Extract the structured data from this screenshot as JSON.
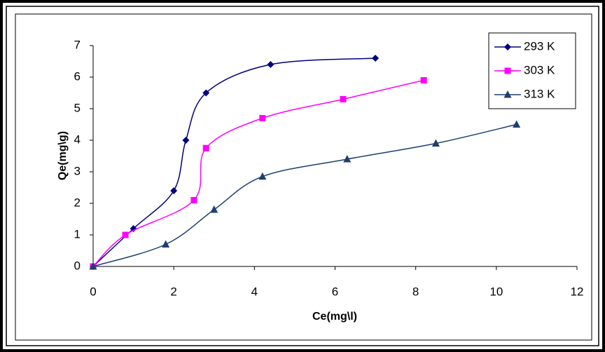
{
  "chart_data": {
    "type": "line",
    "smooth": true,
    "x_label": "Ce(mg\\l)",
    "y_label": "Qe(mg\\g)",
    "xlim": [
      0,
      12
    ],
    "xticks": [
      0,
      2,
      4,
      6,
      8,
      10,
      12
    ],
    "ylim": [
      0,
      7
    ],
    "yticks": [
      0,
      1,
      2,
      3,
      4,
      5,
      6,
      7
    ],
    "grid": false,
    "legend": "top-right",
    "series": [
      {
        "name": "293 K",
        "color": "#000080",
        "marker": "diamond",
        "x": [
          0,
          1,
          2,
          2.3,
          2.8,
          4.4,
          7
        ],
        "values": [
          0,
          1.2,
          2.4,
          4.0,
          5.5,
          6.4,
          6.6
        ]
      },
      {
        "name": "303 K",
        "color": "#ff00ff",
        "marker": "square",
        "x": [
          0,
          0.8,
          2.5,
          2.8,
          4.2,
          6.2,
          8.2
        ],
        "values": [
          0,
          1.0,
          2.1,
          3.75,
          4.7,
          5.3,
          5.9
        ]
      },
      {
        "name": "313 K",
        "color": "#1f3f6f",
        "marker": "triangle",
        "x": [
          0,
          1.8,
          3,
          4.2,
          6.3,
          8.5,
          10.5
        ],
        "values": [
          0,
          0.7,
          1.8,
          2.85,
          3.4,
          3.9,
          4.5
        ]
      }
    ]
  }
}
